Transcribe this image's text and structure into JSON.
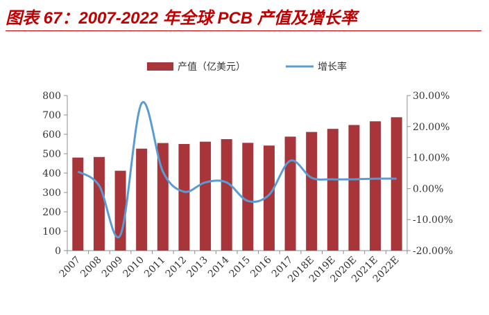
{
  "title": "图表 67：2007-2022 年全球 PCB 产值及增长率",
  "chart_data": {
    "type": "bar",
    "categories": [
      "2007",
      "2008",
      "2009",
      "2010",
      "2011",
      "2012",
      "2013",
      "2014",
      "2015",
      "2016",
      "2017",
      "2018E",
      "2019E",
      "2020E",
      "2021E",
      "2022E"
    ],
    "series": [
      {
        "name": "产值（亿美元）",
        "type": "bar",
        "axis": "left",
        "color": "#a7353a",
        "values": [
          480,
          483,
          412,
          526,
          555,
          550,
          562,
          575,
          556,
          542,
          588,
          612,
          628,
          648,
          667,
          688
        ]
      },
      {
        "name": "增长率",
        "type": "line",
        "axis": "right",
        "color": "#5b9bd5",
        "values": [
          5.5,
          1.0,
          -15.0,
          27.5,
          5.5,
          -1.0,
          2.0,
          2.0,
          -4.0,
          -2.0,
          9.0,
          3.5,
          3.0,
          3.0,
          3.2,
          3.2
        ]
      }
    ],
    "ylim_left": [
      0,
      800
    ],
    "yticks_left": [
      "0",
      "100",
      "200",
      "300",
      "400",
      "500",
      "600",
      "700",
      "800"
    ],
    "ylim_right": [
      -20,
      30
    ],
    "yticks_right": [
      "-20.00%",
      "-10.00%",
      "0.00%",
      "10.00%",
      "20.00%",
      "30.00%"
    ],
    "legend_position": "top",
    "grid": false
  }
}
